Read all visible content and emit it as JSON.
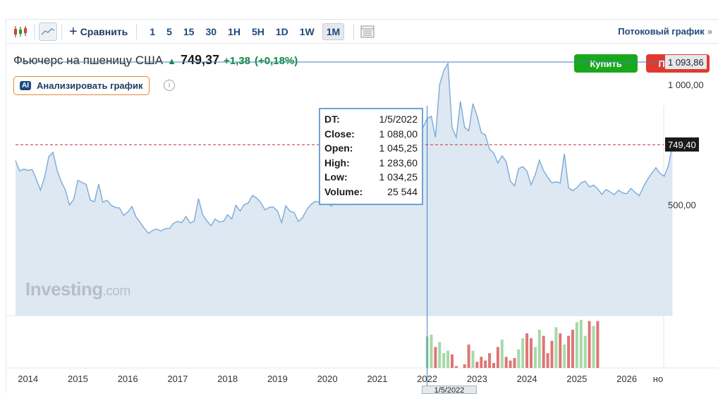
{
  "toolbar": {
    "compare_label": "Сравнить",
    "timeframes": [
      "1",
      "5",
      "15",
      "30",
      "1H",
      "5H",
      "1D",
      "1W",
      "1M"
    ],
    "active_timeframe": "1M",
    "stream_label": "Потоковый график",
    "icons": [
      "candlestick-icon",
      "area-chart-icon",
      "plus-icon",
      "layout-icon",
      "chevron-double-right-icon"
    ]
  },
  "instrument": {
    "name": "Фьючерс на пшеницу США",
    "price": "749,37",
    "change": "+1,38",
    "change_pct": "(+0,18%)",
    "direction": "up"
  },
  "actions": {
    "buy": "Купить",
    "sell": "Продать"
  },
  "analyze": {
    "badge": "AI",
    "label": "Анализировать график"
  },
  "info_icon": "i",
  "watermark": {
    "brand": "Investing",
    "suffix": ".com"
  },
  "tooltip": {
    "rows": [
      {
        "k": "DT:",
        "v": "1/5/2022"
      },
      {
        "k": "Close:",
        "v": "1 088,00"
      },
      {
        "k": "Open:",
        "v": "1 045,25"
      },
      {
        "k": "High:",
        "v": "1 283,60"
      },
      {
        "k": "Low:",
        "v": "1 034,25"
      },
      {
        "k": "Volume:",
        "v": "25 544"
      }
    ]
  },
  "cursor_date": "1/5/2022",
  "colors": {
    "line": "#7aaad8",
    "area": "#dde8f3",
    "vol_up": "#a6d9a8",
    "vol_down": "#e07575",
    "current_price": "#c9343a",
    "crosshair": "#3f7fbf",
    "positive": "#0e8a3a"
  },
  "chart_data": {
    "type": "area",
    "title": "",
    "xlabel": "",
    "ylabel": "",
    "x_tick_labels": [
      "2014",
      "2015",
      "2016",
      "2017",
      "2018",
      "2019",
      "2020",
      "2021",
      "2022",
      "2023",
      "2024",
      "2025",
      "2026",
      "но"
    ],
    "y_tick_labels": [
      "1 000,00",
      "500,00"
    ],
    "ylim": [
      330,
      1150
    ],
    "current_price_label": "749,40",
    "current_price": 749.4,
    "crosshair_price_label": "1 093,86",
    "crosshair_price": 1093.86,
    "grid": false,
    "x_start": "2013-10",
    "x_end": "2026-07",
    "series": [
      {
        "values": [
          683,
          640,
          648,
          643,
          646,
          606,
          560,
          615,
          700,
          718,
          643,
          596,
          561,
          498,
          522,
          601,
          592,
          584,
          518,
          512,
          585,
          510,
          518,
          497,
          488,
          486,
          455,
          469,
          492,
          448,
          425,
          400,
          380,
          393,
          398,
          390,
          400,
          400,
          422,
          430,
          425,
          450,
          423,
          432,
          525,
          458,
          433,
          412,
          440,
          428,
          430,
          458,
          440,
          497,
          473,
          500,
          507,
          538,
          527,
          508,
          478,
          488,
          490,
          474,
          425,
          495,
          472,
          467,
          430,
          445,
          478,
          500,
          513,
          510,
          528,
          505,
          493,
          520,
          532,
          498,
          545,
          560,
          588,
          568,
          610,
          610,
          650,
          635,
          668,
          680,
          705,
          712,
          706,
          795,
          745,
          784,
          764,
          800,
          822,
          858,
          868,
          780,
          1000,
          1058,
          1088,
          820,
          780,
          930,
          822,
          808,
          920,
          870,
          800,
          790,
          730,
          715,
          673,
          703,
          679,
          598,
          578,
          650,
          658,
          640,
          582,
          625,
          685,
          641,
          614,
          590,
          595,
          590,
          712,
          570,
          558,
          570,
          590,
          598,
          574,
          581,
          566,
          542,
          563,
          553,
          541,
          560,
          549,
          545,
          567,
          551,
          537,
          574,
          605,
          630,
          654,
          630,
          618,
          661,
          749
        ]
      }
    ],
    "volume_series": {
      "start_month": "2022-01",
      "values": [
        25544,
        27000,
        17000,
        21000,
        12000,
        14000,
        11000,
        1500,
        0,
        3000,
        19000,
        14000,
        5000,
        9000,
        6000,
        12000,
        4000,
        17000,
        23000,
        9000,
        6000,
        8000,
        15000,
        24000,
        28000,
        24000,
        17000,
        31000,
        26000,
        12000,
        22000,
        33000,
        28000,
        19000,
        26000,
        31000,
        37000,
        39000,
        26000,
        38000,
        34000,
        38000
      ]
    }
  }
}
